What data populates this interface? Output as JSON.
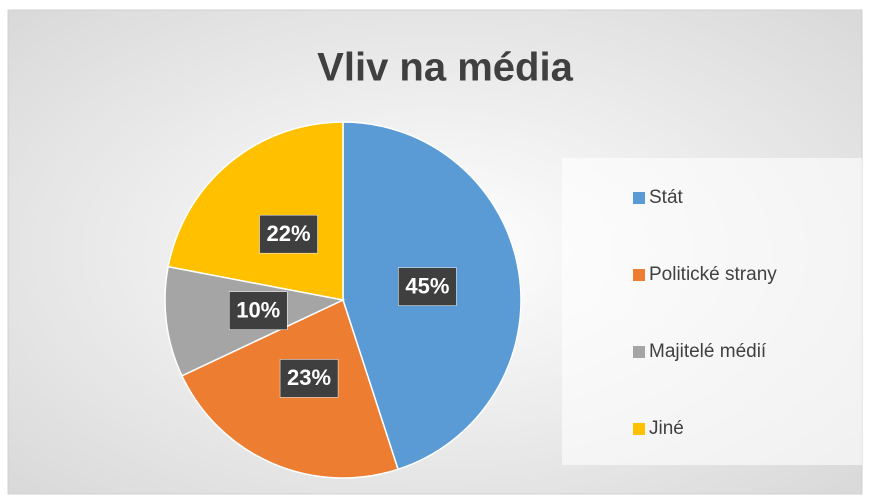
{
  "chart_data": {
    "type": "pie",
    "title": "Vliv na média",
    "categories": [
      "Stát",
      "Politické strany",
      "Majitelé médií",
      "Jiné"
    ],
    "values": [
      45,
      23,
      10,
      22
    ],
    "value_labels": [
      "45%",
      "23%",
      "10%",
      "22%"
    ],
    "colors": [
      "#5b9bd5",
      "#ed7d31",
      "#a5a5a5",
      "#ffc000"
    ],
    "legend": "right"
  }
}
